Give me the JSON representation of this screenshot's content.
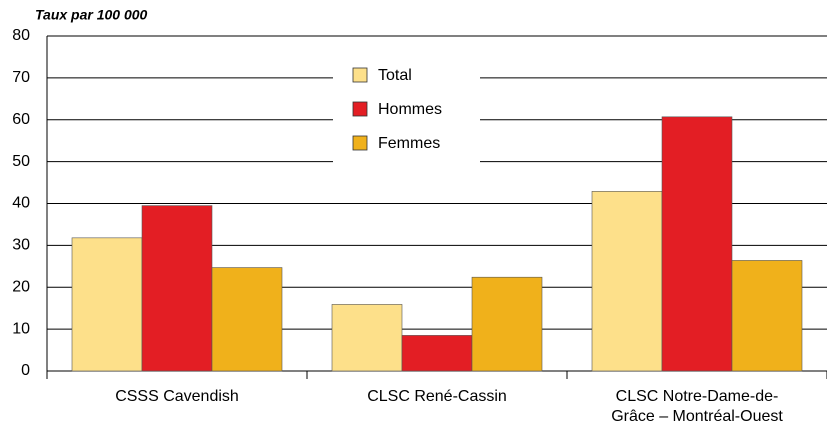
{
  "chart_data": {
    "type": "bar",
    "y_axis_label": "Taux par 100 000",
    "categories": [
      "CSSS Cavendish",
      "CLSC René-Cassin",
      "CLSC Notre-Dame-de-Grâce – Montréal-Ouest"
    ],
    "series": [
      {
        "name": "Total",
        "color": "#fde08a",
        "values": [
          31.8,
          15.9,
          42.9
        ]
      },
      {
        "name": "Hommes",
        "color": "#e31e24",
        "values": [
          39.5,
          8.5,
          60.7
        ]
      },
      {
        "name": "Femmes",
        "color": "#f0b11b",
        "values": [
          24.7,
          22.4,
          26.4
        ]
      }
    ],
    "ylim": [
      0,
      80
    ],
    "yticks": [
      0,
      10,
      20,
      30,
      40,
      50,
      60,
      70,
      80
    ],
    "grid": true,
    "legend": "top"
  }
}
